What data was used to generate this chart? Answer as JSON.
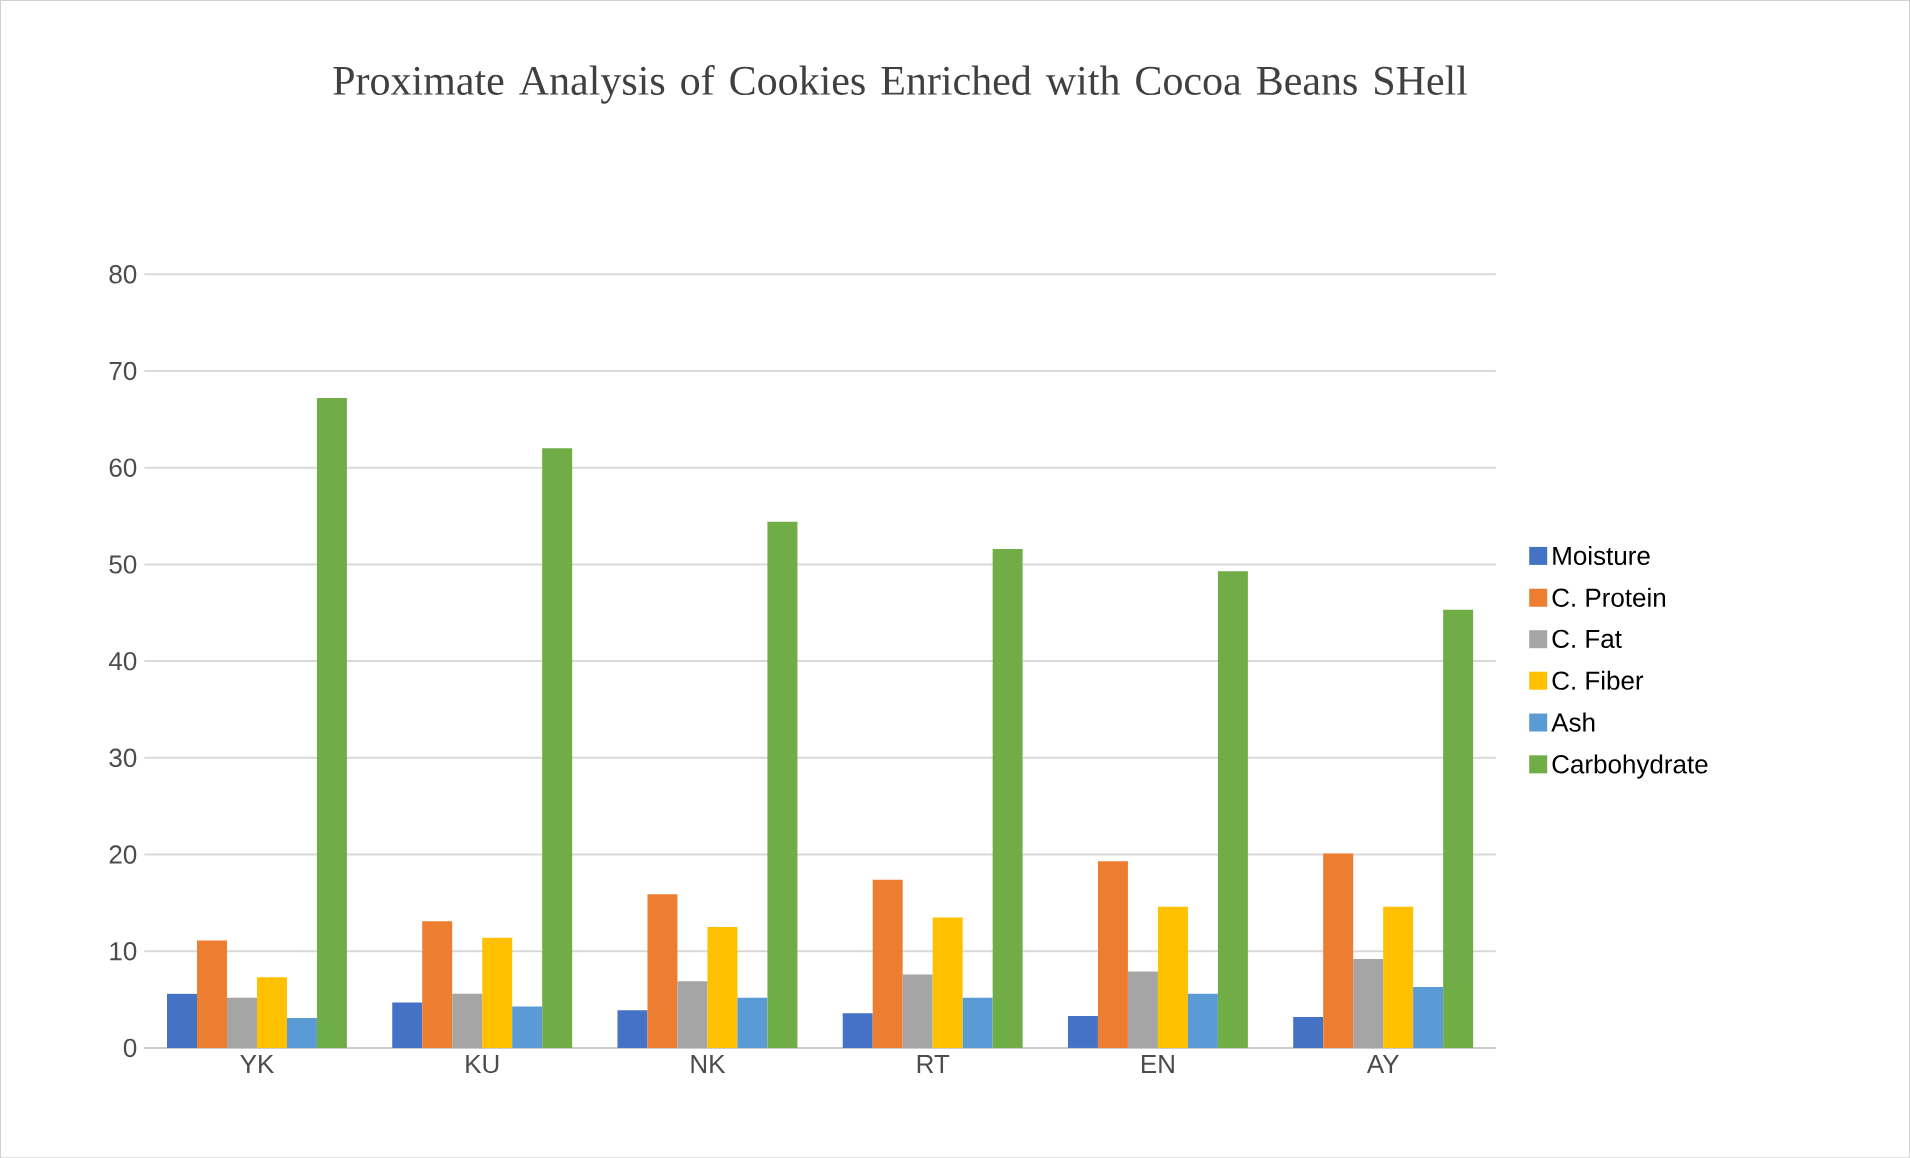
{
  "chart_data": {
    "type": "bar",
    "title": "Proximate Analysis of Cookies Enriched with Cocoa Beans SHell",
    "categories": [
      "YK",
      "KU",
      "NK",
      "RT",
      "EN",
      "AY"
    ],
    "series": [
      {
        "name": "Moisture",
        "color": "#4472c4",
        "values": [
          5.6,
          4.7,
          3.9,
          3.6,
          3.3,
          3.2
        ]
      },
      {
        "name": "C. Protein",
        "color": "#ed7d31",
        "values": [
          11.1,
          13.1,
          15.9,
          17.4,
          19.3,
          20.1
        ]
      },
      {
        "name": "C. Fat",
        "color": "#a5a5a5",
        "values": [
          5.2,
          5.6,
          6.9,
          7.6,
          7.9,
          9.2
        ]
      },
      {
        "name": "C. Fiber",
        "color": "#ffc000",
        "values": [
          7.3,
          11.4,
          12.5,
          13.5,
          14.6,
          14.6
        ]
      },
      {
        "name": "Ash",
        "color": "#5b9bd5",
        "values": [
          3.1,
          4.3,
          5.2,
          5.2,
          5.6,
          6.3
        ]
      },
      {
        "name": "Carbohydrate",
        "color": "#70ad47",
        "values": [
          67.2,
          62.0,
          54.4,
          51.6,
          49.3,
          45.3
        ]
      }
    ],
    "ylim": [
      0,
      80
    ],
    "yticks": [
      0,
      10,
      20,
      30,
      40,
      50,
      60,
      70,
      80
    ],
    "grid": "y",
    "legend": "right"
  }
}
